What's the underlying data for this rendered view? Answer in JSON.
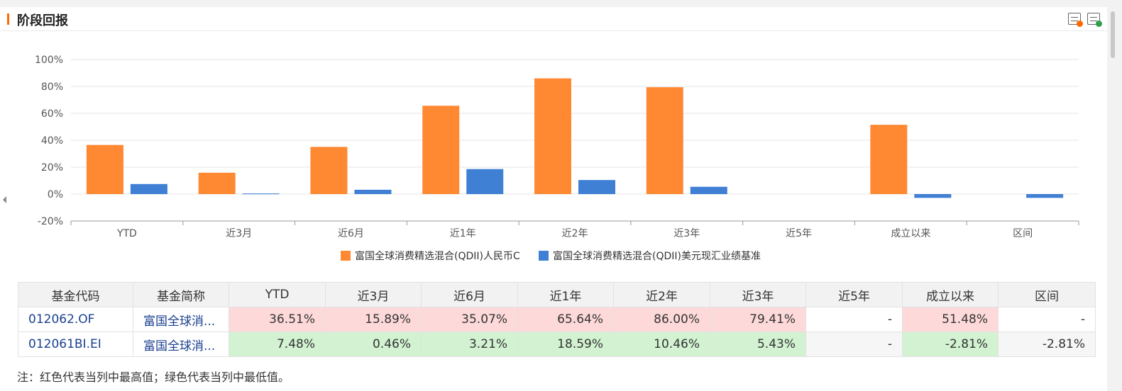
{
  "header": {
    "title": "阶段回报",
    "export_image_icon": "image-export-icon",
    "export_excel_icon": "excel-export-icon"
  },
  "colors": {
    "series1": "#ff8833",
    "series2": "#3f7fd4",
    "high": "#fdd9d9",
    "low": "#d2f2d2",
    "accent": "#ff6a00"
  },
  "chart_data": {
    "type": "bar",
    "categories": [
      "YTD",
      "近3月",
      "近6月",
      "近1年",
      "近2年",
      "近3年",
      "近5年",
      "成立以来",
      "区间"
    ],
    "series": [
      {
        "name": "富国全球消费精选混合(QDII)人民币C",
        "values": [
          36.51,
          15.89,
          35.07,
          65.64,
          86.0,
          79.41,
          null,
          51.48,
          null
        ]
      },
      {
        "name": "富国全球消费精选混合(QDII)美元现汇业绩基准",
        "values": [
          7.48,
          0.46,
          3.21,
          18.59,
          10.46,
          5.43,
          null,
          -2.81,
          -2.81
        ]
      }
    ],
    "ylim": [
      -20,
      100
    ],
    "yticks": [
      "100%",
      "80%",
      "60%",
      "40%",
      "20%",
      "0%",
      "-20%"
    ],
    "ytick_values": [
      100,
      80,
      60,
      40,
      20,
      0,
      -20
    ],
    "grid": true,
    "legend_position": "bottom"
  },
  "table": {
    "headers": [
      "基金代码",
      "基金简称",
      "YTD",
      "近3月",
      "近6月",
      "近1年",
      "近2年",
      "近3年",
      "近5年",
      "成立以来",
      "区间"
    ],
    "rows": [
      {
        "code": "012062.OF",
        "name": "富国全球消...",
        "cells": [
          "36.51%",
          "15.89%",
          "35.07%",
          "65.64%",
          "86.00%",
          "79.41%",
          "-",
          "51.48%",
          "-"
        ]
      },
      {
        "code": "012061BI.EI",
        "name": "富国全球消...",
        "cells": [
          "7.48%",
          "0.46%",
          "3.21%",
          "18.59%",
          "10.46%",
          "5.43%",
          "-",
          "-2.81%",
          "-2.81%"
        ]
      }
    ]
  },
  "note": "注：红色代表当列中最高值；绿色代表当列中最低值。"
}
